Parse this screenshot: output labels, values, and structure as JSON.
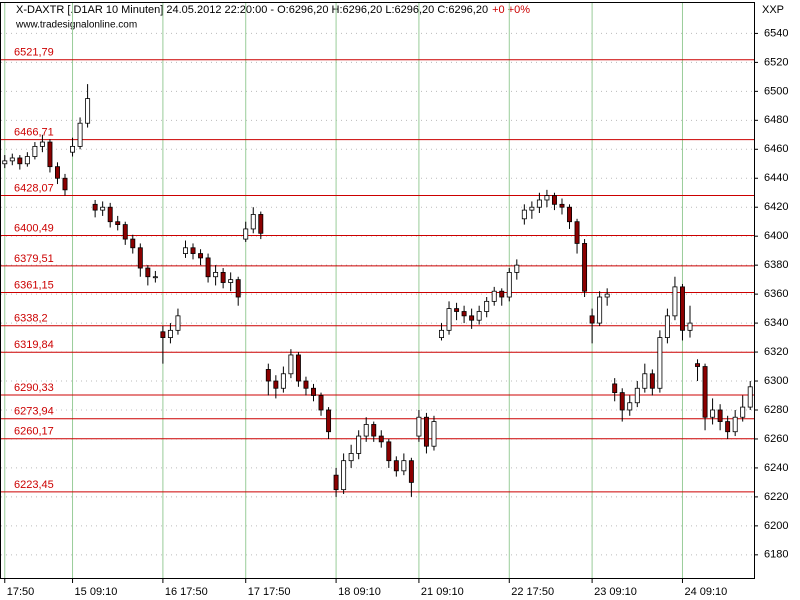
{
  "chart_data": {
    "type": "candlestick",
    "title": "X-DAXTR [.D1AR  10 Minuten] 24.05.2012 22:20:00 - O:6296,20 H:6296,20 L:6296,20 C:6296,20",
    "change": "+0 +0%",
    "watermark": "www.tradesignalonline.com",
    "y_axis_label": "XXP",
    "up_color": "#ffffff",
    "down_color": "#8b0000",
    "level_color": "#cc0000",
    "grid": true,
    "xlim": [
      -0.5,
      99.5
    ],
    "xticks": [
      {
        "value": 0,
        "label": "17:50"
      },
      {
        "value": 9,
        "label": "15 09:10"
      },
      {
        "value": 21,
        "label": "16 17:50"
      },
      {
        "value": 32,
        "label": "17 17:50"
      },
      {
        "value": 44,
        "label": "18 09:10"
      },
      {
        "value": 55,
        "label": "21 09:10"
      },
      {
        "value": 67,
        "label": "22 17:50"
      },
      {
        "value": 78,
        "label": "23 09:10"
      },
      {
        "value": 90,
        "label": "24 09:10"
      }
    ],
    "ylim": [
      6164,
      6561
    ],
    "yticks": [
      6180,
      6200,
      6220,
      6240,
      6260,
      6280,
      6300,
      6320,
      6340,
      6360,
      6380,
      6400,
      6420,
      6440,
      6460,
      6480,
      6500,
      6520,
      6540
    ],
    "levels": [
      {
        "value": 6521.79,
        "label": "6521,79"
      },
      {
        "value": 6466.71,
        "label": "6466,71"
      },
      {
        "value": 6428.07,
        "label": "6428,07"
      },
      {
        "value": 6400.49,
        "label": "6400,49"
      },
      {
        "value": 6379.51,
        "label": "6379,51"
      },
      {
        "value": 6361.15,
        "label": "6361,15"
      },
      {
        "value": 6338.2,
        "label": "6338,2"
      },
      {
        "value": 6319.84,
        "label": "6319,84"
      },
      {
        "value": 6290.33,
        "label": "6290,33"
      },
      {
        "value": 6273.94,
        "label": "6273,94"
      },
      {
        "value": 6260.17,
        "label": "6260,17"
      },
      {
        "value": 6223.45,
        "label": "6223,45"
      }
    ],
    "candles": [
      [
        6450,
        6456,
        6447,
        6452
      ],
      [
        6452,
        6457,
        6449,
        6454
      ],
      [
        6454,
        6456,
        6446,
        6450
      ],
      [
        6450,
        6458,
        6448,
        6455
      ],
      [
        6455,
        6465,
        6453,
        6462
      ],
      [
        6462,
        6470,
        6458,
        6465
      ],
      [
        6465,
        6467,
        6444,
        6448
      ],
      [
        6448,
        6451,
        6436,
        6440
      ],
      [
        6440,
        6443,
        6428,
        6432
      ],
      [
        6458,
        6468,
        6455,
        6462
      ],
      [
        6462,
        6482,
        6460,
        6478
      ],
      [
        6478,
        6505,
        6475,
        6495
      ],
      [
        6422,
        6425,
        6413,
        6418
      ],
      [
        6418,
        6424,
        6414,
        6420
      ],
      [
        6420,
        6423,
        6406,
        6410
      ],
      [
        6410,
        6414,
        6404,
        6408
      ],
      [
        6408,
        6410,
        6394,
        6398
      ],
      [
        6398,
        6401,
        6388,
        6392
      ],
      [
        6392,
        6395,
        6372,
        6378
      ],
      [
        6378,
        6380,
        6366,
        6372
      ],
      [
        6372,
        6376,
        6368,
        6372
      ],
      [
        6334,
        6338,
        6312,
        6330
      ],
      [
        6330,
        6340,
        6326,
        6335
      ],
      [
        6335,
        6350,
        6332,
        6345
      ],
      [
        6388,
        6397,
        6385,
        6392
      ],
      [
        6392,
        6395,
        6384,
        6388
      ],
      [
        6388,
        6391,
        6380,
        6385
      ],
      [
        6385,
        6388,
        6368,
        6372
      ],
      [
        6372,
        6380,
        6366,
        6375
      ],
      [
        6375,
        6378,
        6364,
        6368
      ],
      [
        6368,
        6375,
        6362,
        6370
      ],
      [
        6370,
        6372,
        6352,
        6358
      ],
      [
        6398,
        6410,
        6396,
        6405
      ],
      [
        6405,
        6420,
        6402,
        6415
      ],
      [
        6415,
        6417,
        6398,
        6402
      ],
      [
        6308,
        6312,
        6290,
        6300
      ],
      [
        6300,
        6304,
        6288,
        6295
      ],
      [
        6295,
        6310,
        6292,
        6305
      ],
      [
        6305,
        6322,
        6302,
        6318
      ],
      [
        6318,
        6320,
        6296,
        6300
      ],
      [
        6300,
        6303,
        6290,
        6295
      ],
      [
        6295,
        6298,
        6286,
        6290
      ],
      [
        6290,
        6292,
        6276,
        6280
      ],
      [
        6280,
        6282,
        6260,
        6265
      ],
      [
        6235,
        6240,
        6220,
        6225
      ],
      [
        6225,
        6250,
        6222,
        6245
      ],
      [
        6245,
        6256,
        6240,
        6250
      ],
      [
        6250,
        6266,
        6246,
        6262
      ],
      [
        6262,
        6275,
        6258,
        6270
      ],
      [
        6270,
        6272,
        6258,
        6262
      ],
      [
        6262,
        6266,
        6254,
        6258
      ],
      [
        6258,
        6260,
        6240,
        6245
      ],
      [
        6245,
        6248,
        6234,
        6238
      ],
      [
        6238,
        6250,
        6235,
        6245
      ],
      [
        6245,
        6247,
        6220,
        6230
      ],
      [
        6262,
        6280,
        6258,
        6275
      ],
      [
        6275,
        6278,
        6250,
        6255
      ],
      [
        6255,
        6276,
        6252,
        6272
      ],
      [
        6330,
        6340,
        6328,
        6335
      ],
      [
        6335,
        6355,
        6332,
        6350
      ],
      [
        6350,
        6354,
        6342,
        6348
      ],
      [
        6348,
        6352,
        6340,
        6345
      ],
      [
        6345,
        6350,
        6336,
        6342
      ],
      [
        6342,
        6352,
        6339,
        6348
      ],
      [
        6348,
        6358,
        6344,
        6355
      ],
      [
        6355,
        6365,
        6352,
        6362
      ],
      [
        6362,
        6364,
        6352,
        6358
      ],
      [
        6358,
        6378,
        6355,
        6375
      ],
      [
        6375,
        6384,
        6370,
        6380
      ],
      [
        6412,
        6422,
        6408,
        6418
      ],
      [
        6418,
        6424,
        6412,
        6420
      ],
      [
        6420,
        6430,
        6416,
        6425
      ],
      [
        6425,
        6432,
        6420,
        6428
      ],
      [
        6428,
        6430,
        6418,
        6422
      ],
      [
        6422,
        6426,
        6415,
        6420
      ],
      [
        6420,
        6422,
        6405,
        6410
      ],
      [
        6410,
        6412,
        6388,
        6395
      ],
      [
        6395,
        6398,
        6358,
        6362
      ],
      [
        6345,
        6350,
        6326,
        6340
      ],
      [
        6340,
        6362,
        6338,
        6358
      ],
      [
        6358,
        6364,
        6352,
        6360
      ],
      [
        6298,
        6302,
        6286,
        6292
      ],
      [
        6292,
        6295,
        6272,
        6280
      ],
      [
        6280,
        6290,
        6276,
        6285
      ],
      [
        6285,
        6300,
        6282,
        6295
      ],
      [
        6295,
        6312,
        6292,
        6305
      ],
      [
        6305,
        6308,
        6290,
        6295
      ],
      [
        6295,
        6335,
        6292,
        6330
      ],
      [
        6330,
        6350,
        6326,
        6345
      ],
      [
        6345,
        6372,
        6342,
        6365
      ],
      [
        6365,
        6367,
        6328,
        6335
      ],
      [
        6335,
        6352,
        6330,
        6340
      ],
      [
        6312,
        6315,
        6300,
        6310
      ],
      [
        6310,
        6312,
        6266,
        6275
      ],
      [
        6275,
        6288,
        6270,
        6280
      ],
      [
        6280,
        6284,
        6266,
        6272
      ],
      [
        6272,
        6276,
        6260,
        6265
      ],
      [
        6265,
        6280,
        6262,
        6275
      ],
      [
        6275,
        6290,
        6272,
        6282
      ],
      [
        6282,
        6300,
        6280,
        6296
      ]
    ]
  }
}
